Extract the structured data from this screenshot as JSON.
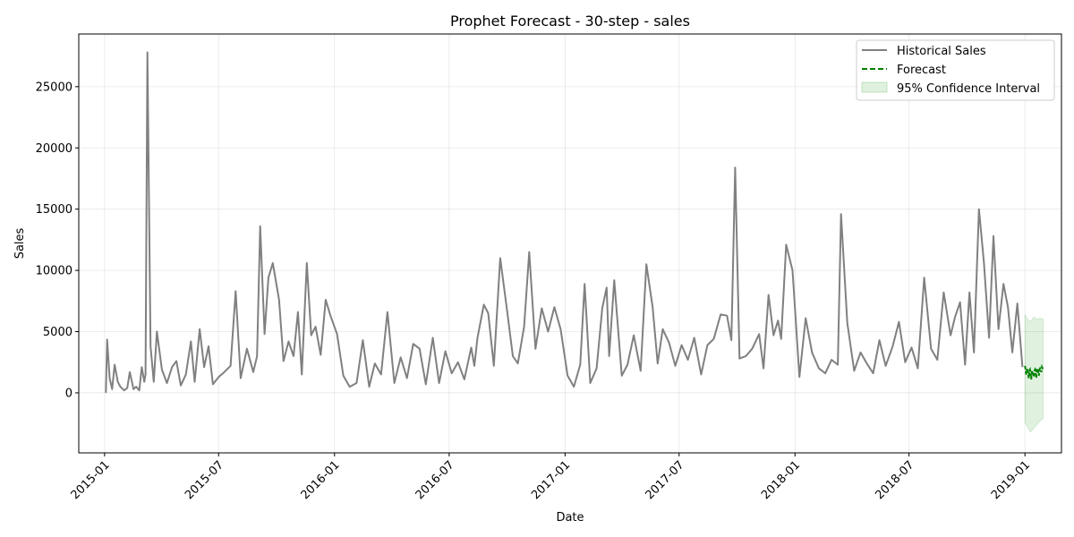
{
  "chart_data": {
    "type": "line",
    "title": "Prophet Forecast - 30-step - sales",
    "xlabel": "Date",
    "ylabel": "Sales",
    "x_range": [
      "2014-11-21",
      "2019-02-28"
    ],
    "ylim": [
      -4900,
      29300
    ],
    "yticks": [
      0,
      5000,
      10000,
      15000,
      20000,
      25000
    ],
    "xticks": [
      "2015-01",
      "2015-07",
      "2016-01",
      "2016-07",
      "2017-01",
      "2017-07",
      "2018-01",
      "2018-07",
      "2019-01"
    ],
    "grid": true,
    "legend_position": "top-right",
    "colors": {
      "historical": "#808080",
      "forecast": "#008000",
      "ci": "#2ca02c"
    },
    "legend": [
      {
        "label": "Historical Sales",
        "style": "line"
      },
      {
        "label": "Forecast",
        "style": "dashed"
      },
      {
        "label": "95% Confidence Interval",
        "style": "patch"
      }
    ],
    "series": [
      {
        "name": "Historical Sales",
        "x": [
          "2015-01-03",
          "2015-01-05",
          "2015-01-09",
          "2015-01-13",
          "2015-01-17",
          "2015-01-22",
          "2015-01-26",
          "2015-02-01",
          "2015-02-06",
          "2015-02-10",
          "2015-02-16",
          "2015-02-20",
          "2015-02-25",
          "2015-03-01",
          "2015-03-05",
          "2015-03-07",
          "2015-03-10",
          "2015-03-15",
          "2015-03-20",
          "2015-03-25",
          "2015-04-02",
          "2015-04-10",
          "2015-04-18",
          "2015-04-25",
          "2015-05-02",
          "2015-05-10",
          "2015-05-18",
          "2015-05-24",
          "2015-06-01",
          "2015-06-08",
          "2015-06-15",
          "2015-06-22",
          "2015-07-01",
          "2015-07-10",
          "2015-07-20",
          "2015-07-28",
          "2015-08-05",
          "2015-08-15",
          "2015-08-25",
          "2015-08-31",
          "2015-09-05",
          "2015-09-12",
          "2015-09-18",
          "2015-09-25",
          "2015-10-05",
          "2015-10-12",
          "2015-10-20",
          "2015-10-28",
          "2015-11-04",
          "2015-11-10",
          "2015-11-18",
          "2015-11-25",
          "2015-12-02",
          "2015-12-10",
          "2015-12-18",
          "2015-12-25",
          "2016-01-05",
          "2016-01-15",
          "2016-01-25",
          "2016-02-05",
          "2016-02-15",
          "2016-02-25",
          "2016-03-05",
          "2016-03-15",
          "2016-03-25",
          "2016-04-05",
          "2016-04-15",
          "2016-04-25",
          "2016-05-05",
          "2016-05-15",
          "2016-05-25",
          "2016-06-05",
          "2016-06-15",
          "2016-06-25",
          "2016-07-05",
          "2016-07-15",
          "2016-07-25",
          "2016-08-05",
          "2016-08-10",
          "2016-08-15",
          "2016-08-25",
          "2016-09-01",
          "2016-09-10",
          "2016-09-20",
          "2016-10-01",
          "2016-10-10",
          "2016-10-18",
          "2016-10-28",
          "2016-11-05",
          "2016-11-15",
          "2016-11-25",
          "2016-12-05",
          "2016-12-15",
          "2016-12-25",
          "2017-01-05",
          "2017-01-15",
          "2017-01-25",
          "2017-02-01",
          "2017-02-10",
          "2017-02-20",
          "2017-03-01",
          "2017-03-08",
          "2017-03-12",
          "2017-03-20",
          "2017-04-01",
          "2017-04-10",
          "2017-04-20",
          "2017-05-01",
          "2017-05-10",
          "2017-05-20",
          "2017-05-28",
          "2017-06-05",
          "2017-06-15",
          "2017-06-25",
          "2017-07-05",
          "2017-07-15",
          "2017-07-25",
          "2017-08-05",
          "2017-08-15",
          "2017-08-25",
          "2017-09-05",
          "2017-09-15",
          "2017-09-22",
          "2017-09-28",
          "2017-10-05",
          "2017-10-15",
          "2017-10-25",
          "2017-11-05",
          "2017-11-12",
          "2017-11-20",
          "2017-11-28",
          "2017-12-05",
          "2017-12-10",
          "2017-12-18",
          "2017-12-28",
          "2018-01-08",
          "2018-01-18",
          "2018-01-28",
          "2018-02-08",
          "2018-02-18",
          "2018-02-28",
          "2018-03-10",
          "2018-03-15",
          "2018-03-25",
          "2018-04-05",
          "2018-04-15",
          "2018-04-25",
          "2018-05-05",
          "2018-05-15",
          "2018-05-25",
          "2018-06-05",
          "2018-06-15",
          "2018-06-25",
          "2018-07-05",
          "2018-07-15",
          "2018-07-25",
          "2018-08-05",
          "2018-08-15",
          "2018-08-25",
          "2018-09-05",
          "2018-09-12",
          "2018-09-20",
          "2018-09-28",
          "2018-10-05",
          "2018-10-12",
          "2018-10-20",
          "2018-10-28",
          "2018-11-05",
          "2018-11-12",
          "2018-11-20",
          "2018-11-28",
          "2018-12-05",
          "2018-12-12",
          "2018-12-20",
          "2018-12-28"
        ],
        "values": [
          0,
          4350,
          1200,
          300,
          2300,
          900,
          500,
          200,
          400,
          1700,
          300,
          500,
          200,
          2100,
          900,
          1500,
          27800,
          3800,
          900,
          5000,
          1900,
          800,
          2100,
          2600,
          600,
          1500,
          4200,
          900,
          5200,
          2100,
          3800,
          700,
          1300,
          1700,
          2200,
          8300,
          1200,
          3600,
          1700,
          3000,
          13600,
          4800,
          9400,
          10600,
          7600,
          2600,
          4200,
          3000,
          6600,
          1500,
          10600,
          4700,
          5400,
          3100,
          7600,
          6400,
          4800,
          1400,
          500,
          800,
          4300,
          500,
          2400,
          1500,
          6600,
          800,
          2900,
          1200,
          4000,
          3600,
          700,
          4500,
          800,
          3400,
          1600,
          2500,
          1100,
          3700,
          2200,
          4500,
          7200,
          6500,
          2200,
          11000,
          6700,
          3000,
          2400,
          5400,
          11500,
          3600,
          6900,
          5000,
          7000,
          5200,
          1400,
          500,
          2300,
          8900,
          800,
          2000,
          6900,
          8600,
          3000,
          9200,
          1400,
          2300,
          4700,
          1800,
          10500,
          7000,
          2400,
          5200,
          4100,
          2200,
          3900,
          2700,
          4500,
          1500,
          3900,
          4400,
          6400,
          6300,
          4300,
          18400,
          2800,
          3000,
          3600,
          4800,
          2000,
          8000,
          4700,
          5900,
          4400,
          12100,
          10000,
          1300,
          6100,
          3300,
          2000,
          1600,
          2700,
          2300,
          14600,
          5700,
          1800,
          3300,
          2400,
          1600,
          4300,
          2200,
          3800,
          5800,
          2500,
          3700,
          2000,
          9400,
          3600,
          2700,
          8200,
          4700,
          6200,
          7400,
          2300,
          8200,
          3300,
          15000,
          10600,
          4500,
          12800,
          5200,
          8900,
          7000,
          3300,
          7300,
          2100
        ]
      },
      {
        "name": "Forecast",
        "x": [
          "2019-01-01",
          "2019-01-02",
          "2019-01-03",
          "2019-01-04",
          "2019-01-05",
          "2019-01-06",
          "2019-01-07",
          "2019-01-08",
          "2019-01-09",
          "2019-01-10",
          "2019-01-11",
          "2019-01-12",
          "2019-01-13",
          "2019-01-14",
          "2019-01-15",
          "2019-01-16",
          "2019-01-17",
          "2019-01-18",
          "2019-01-19",
          "2019-01-20",
          "2019-01-21",
          "2019-01-22",
          "2019-01-23",
          "2019-01-24",
          "2019-01-25",
          "2019-01-26",
          "2019-01-27",
          "2019-01-28",
          "2019-01-29",
          "2019-01-30"
        ],
        "values": [
          2200,
          1900,
          1500,
          1800,
          2000,
          1700,
          1200,
          1800,
          1900,
          1600,
          1100,
          1700,
          1800,
          1500,
          1300,
          1800,
          1900,
          1700,
          1200,
          1900,
          2000,
          1800,
          1400,
          1900,
          2000,
          1900,
          1700,
          2100,
          2000,
          2000
        ]
      }
    ],
    "confidence_interval": {
      "name": "95% Confidence Interval",
      "x": [
        "2019-01-01",
        "2019-01-05",
        "2019-01-10",
        "2019-01-15",
        "2019-01-20",
        "2019-01-25",
        "2019-01-30"
      ],
      "lower": [
        -2400,
        -2800,
        -3200,
        -2900,
        -2600,
        -2300,
        -2100
      ],
      "upper": [
        6400,
        6000,
        5800,
        6200,
        6000,
        6100,
        6000
      ]
    }
  }
}
